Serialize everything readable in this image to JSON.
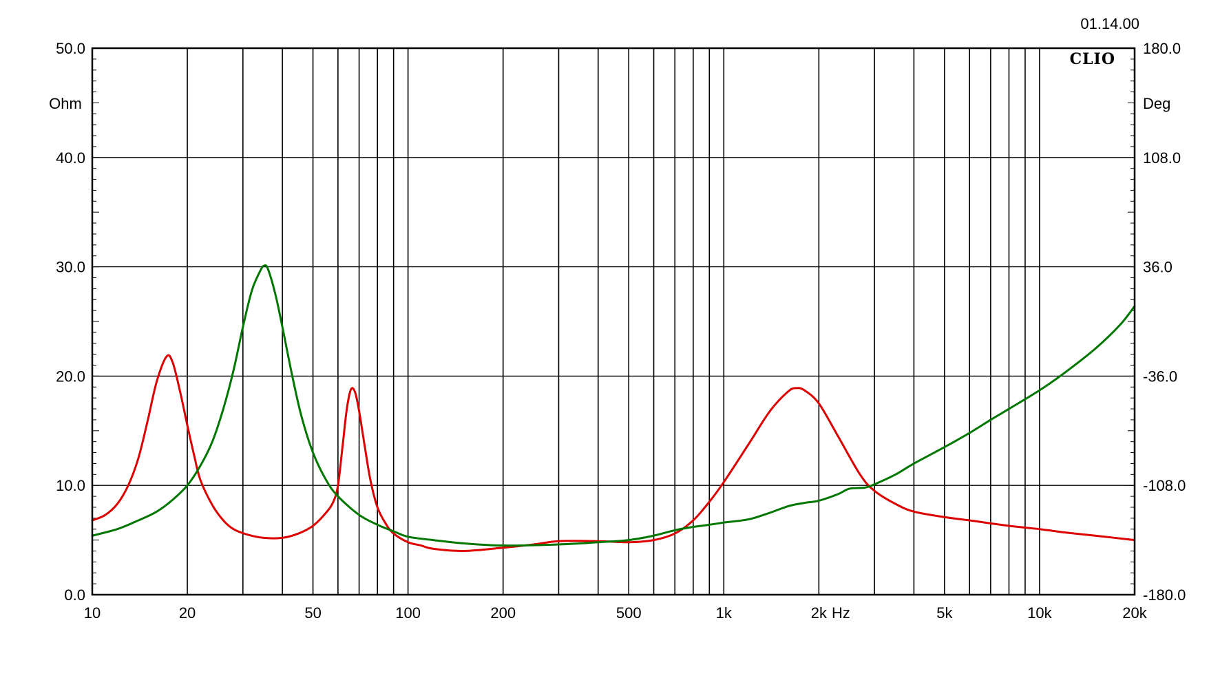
{
  "chart_data": {
    "type": "line",
    "title": "",
    "timestamp": "01.14.00",
    "brand": "CLIO",
    "x_unit_label": "Hz",
    "xscale": "log",
    "xlim": [
      10,
      20000
    ],
    "x_tick_values": [
      10,
      20,
      50,
      100,
      200,
      500,
      1000,
      2000,
      5000,
      10000,
      20000
    ],
    "x_tick_labels": [
      "10",
      "20",
      "50",
      "100",
      "200",
      "500",
      "1k",
      "2k",
      "5k",
      "10k",
      "20k"
    ],
    "y_left": {
      "label": "Ohm",
      "lim": [
        0,
        50
      ],
      "tick_values": [
        0,
        10,
        20,
        30,
        40,
        50
      ],
      "tick_labels": [
        "0.0",
        "10.0",
        "20.0",
        "30.0",
        "40.0",
        "50.0"
      ]
    },
    "y_right": {
      "label": "Deg",
      "lim": [
        -180,
        180
      ],
      "tick_values": [
        -180,
        -108,
        -36,
        36,
        108,
        180
      ],
      "tick_labels": [
        "-180.0",
        "-108.0",
        "-36.0",
        "36.0",
        "108.0",
        "180.0"
      ]
    },
    "grid": true,
    "colors": {
      "red_series": "#dd0000",
      "green_series": "#007700",
      "grid": "#000000",
      "background": "#ffffff"
    },
    "series": [
      {
        "axis": "left",
        "color": "#dd0000",
        "points": [
          [
            10,
            6.8
          ],
          [
            11,
            7.3
          ],
          [
            12,
            8.3
          ],
          [
            13,
            10.0
          ],
          [
            14,
            12.5
          ],
          [
            15,
            16.0
          ],
          [
            16,
            19.5
          ],
          [
            17.2,
            21.8
          ],
          [
            18,
            21.2
          ],
          [
            19,
            18.5
          ],
          [
            20,
            15.5
          ],
          [
            21,
            12.8
          ],
          [
            22,
            10.5
          ],
          [
            24,
            8.2
          ],
          [
            26,
            6.8
          ],
          [
            28,
            6.0
          ],
          [
            31,
            5.5
          ],
          [
            35,
            5.2
          ],
          [
            40,
            5.2
          ],
          [
            45,
            5.6
          ],
          [
            50,
            6.3
          ],
          [
            55,
            7.5
          ],
          [
            58,
            8.5
          ],
          [
            60,
            10.0
          ],
          [
            62,
            13.5
          ],
          [
            64,
            17.0
          ],
          [
            66,
            18.8
          ],
          [
            68,
            18.5
          ],
          [
            70,
            16.8
          ],
          [
            73,
            13.5
          ],
          [
            76,
            10.5
          ],
          [
            80,
            8.0
          ],
          [
            85,
            6.5
          ],
          [
            90,
            5.6
          ],
          [
            100,
            4.8
          ],
          [
            110,
            4.5
          ],
          [
            120,
            4.2
          ],
          [
            150,
            4.0
          ],
          [
            200,
            4.3
          ],
          [
            250,
            4.6
          ],
          [
            300,
            4.9
          ],
          [
            400,
            4.9
          ],
          [
            500,
            4.8
          ],
          [
            600,
            5.0
          ],
          [
            700,
            5.6
          ],
          [
            800,
            6.8
          ],
          [
            900,
            8.5
          ],
          [
            1000,
            10.3
          ],
          [
            1200,
            13.8
          ],
          [
            1400,
            16.8
          ],
          [
            1600,
            18.6
          ],
          [
            1700,
            18.9
          ],
          [
            1800,
            18.7
          ],
          [
            2000,
            17.5
          ],
          [
            2300,
            14.5
          ],
          [
            2700,
            11.0
          ],
          [
            3000,
            9.5
          ],
          [
            3500,
            8.3
          ],
          [
            4000,
            7.6
          ],
          [
            5000,
            7.1
          ],
          [
            6000,
            6.8
          ],
          [
            8000,
            6.3
          ],
          [
            10000,
            6.0
          ],
          [
            12000,
            5.7
          ],
          [
            15000,
            5.4
          ],
          [
            20000,
            5.0
          ]
        ]
      },
      {
        "axis": "left",
        "color": "#007700",
        "points": [
          [
            10,
            5.4
          ],
          [
            12,
            6.0
          ],
          [
            14,
            6.8
          ],
          [
            16,
            7.6
          ],
          [
            18,
            8.7
          ],
          [
            20,
            10.0
          ],
          [
            22,
            11.8
          ],
          [
            24,
            14.0
          ],
          [
            26,
            17.0
          ],
          [
            28,
            20.5
          ],
          [
            30,
            24.5
          ],
          [
            32,
            27.8
          ],
          [
            34,
            29.6
          ],
          [
            35,
            30.1
          ],
          [
            36,
            29.8
          ],
          [
            38,
            27.5
          ],
          [
            40,
            24.5
          ],
          [
            43,
            20.0
          ],
          [
            46,
            16.3
          ],
          [
            50,
            13.0
          ],
          [
            55,
            10.5
          ],
          [
            60,
            9.0
          ],
          [
            70,
            7.3
          ],
          [
            80,
            6.4
          ],
          [
            90,
            5.8
          ],
          [
            100,
            5.3
          ],
          [
            120,
            5.0
          ],
          [
            150,
            4.7
          ],
          [
            200,
            4.5
          ],
          [
            300,
            4.6
          ],
          [
            400,
            4.8
          ],
          [
            500,
            5.0
          ],
          [
            600,
            5.4
          ],
          [
            700,
            5.9
          ],
          [
            800,
            6.2
          ],
          [
            900,
            6.4
          ],
          [
            1000,
            6.6
          ],
          [
            1200,
            6.9
          ],
          [
            1400,
            7.5
          ],
          [
            1600,
            8.1
          ],
          [
            1800,
            8.4
          ],
          [
            2000,
            8.6
          ],
          [
            2300,
            9.2
          ],
          [
            2500,
            9.7
          ],
          [
            2800,
            9.8
          ],
          [
            3000,
            10.1
          ],
          [
            3500,
            11.0
          ],
          [
            4000,
            12.0
          ],
          [
            5000,
            13.5
          ],
          [
            6000,
            14.8
          ],
          [
            7000,
            16.0
          ],
          [
            8000,
            17.0
          ],
          [
            10000,
            18.7
          ],
          [
            12000,
            20.3
          ],
          [
            15000,
            22.5
          ],
          [
            18000,
            24.7
          ],
          [
            20000,
            26.4
          ]
        ]
      }
    ]
  }
}
